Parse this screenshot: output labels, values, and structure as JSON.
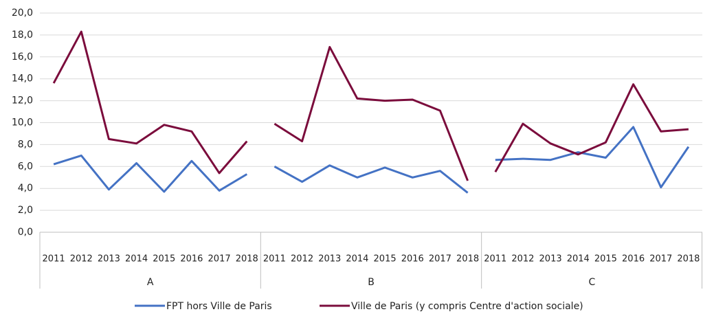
{
  "chart_data": {
    "type": "line",
    "categories": [
      "2011",
      "2012",
      "2013",
      "2014",
      "2015",
      "2016",
      "2017",
      "2018",
      "2011",
      "2012",
      "2013",
      "2014",
      "2015",
      "2016",
      "2017",
      "2018",
      "2011",
      "2012",
      "2013",
      "2014",
      "2015",
      "2016",
      "2017",
      "2018"
    ],
    "groups": [
      "A",
      "B",
      "C"
    ],
    "series": [
      {
        "name": "FPT hors Ville de Paris",
        "color": "#4472c4",
        "values": [
          6.2,
          7.0,
          3.9,
          6.3,
          3.7,
          6.5,
          3.8,
          5.3,
          6.0,
          4.6,
          6.1,
          5.0,
          5.9,
          5.0,
          5.6,
          3.6,
          6.6,
          6.7,
          6.6,
          7.3,
          6.8,
          9.6,
          4.1,
          7.8
        ]
      },
      {
        "name": "Ville de Paris (y compris Centre d'action sociale)",
        "color": "#7b0c3c",
        "values": [
          13.6,
          18.3,
          8.5,
          8.1,
          9.8,
          9.2,
          5.4,
          8.3,
          9.9,
          8.3,
          16.9,
          12.2,
          12.0,
          12.1,
          11.1,
          4.7,
          5.5,
          9.9,
          8.1,
          7.1,
          8.2,
          13.5,
          9.2,
          9.4
        ]
      }
    ],
    "ylim": [
      0,
      20
    ],
    "yticks": [
      {
        "value": 0,
        "label": "0,0"
      },
      {
        "value": 2,
        "label": "2,0"
      },
      {
        "value": 4,
        "label": "4,0"
      },
      {
        "value": 6,
        "label": "6,0"
      },
      {
        "value": 8,
        "label": "8,0"
      },
      {
        "value": 10,
        "label": "10,0"
      },
      {
        "value": 12,
        "label": "12,0"
      },
      {
        "value": 14,
        "label": "14,0"
      },
      {
        "value": 16,
        "label": "16,0"
      },
      {
        "value": 18,
        "label": "18,0"
      },
      {
        "value": 20,
        "label": "20,0"
      }
    ],
    "grid": true,
    "legend": "bottom"
  }
}
